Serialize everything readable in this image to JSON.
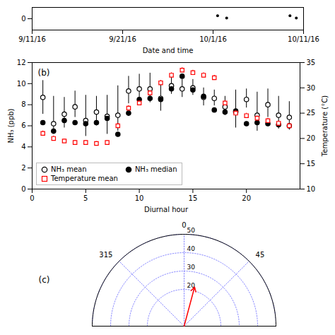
{
  "chart_data": [
    {
      "type": "scatter",
      "xlabel": "Date and time",
      "x": [
        20.5,
        21.5,
        28.5,
        29.2
      ],
      "values": [
        0.08,
        0.02,
        0.08,
        0.02
      ],
      "color": "black",
      "xlim": [
        0,
        30
      ],
      "xticks": [
        {
          "value": 0,
          "label": "9/11/16"
        },
        {
          "value": 10,
          "label": "9/21/16"
        },
        {
          "value": 20,
          "label": "10/1/16"
        },
        {
          "value": 30,
          "label": "10/11/16"
        }
      ],
      "ylim": [
        -0.3,
        0.3
      ],
      "yticks": [
        0
      ]
    },
    {
      "type": "scatter",
      "annotation": "(b)",
      "xlabel": "Diurnal hour",
      "ylabel": "NH₃ (ppb)",
      "y2label": "Temperature (°C)",
      "x": [
        1,
        2,
        3,
        4,
        5,
        6,
        7,
        8,
        9,
        10,
        11,
        12,
        13,
        14,
        15,
        16,
        17,
        18,
        19,
        20,
        21,
        22,
        23,
        24
      ],
      "xlim": [
        0,
        25
      ],
      "xticks": [
        0,
        5,
        10,
        15,
        20
      ],
      "ylim": [
        0,
        12
      ],
      "yticks": [
        0,
        2,
        4,
        6,
        8,
        10,
        12
      ],
      "y2lim": [
        10,
        35
      ],
      "y2ticks": [
        10,
        15,
        20,
        25,
        30,
        35
      ],
      "legend": "lower left",
      "series": [
        {
          "name": "NH₃ mean",
          "color": "black",
          "marker": "circle_open",
          "values": [
            8.7,
            6.2,
            7.1,
            7.8,
            6.5,
            7.3,
            6.9,
            7.0,
            9.3,
            9.5,
            9.5,
            8.6,
            9.8,
            9.5,
            9.6,
            8.7,
            8.6,
            7.8,
            7.3,
            8.5,
            7.0,
            8.0,
            7.0,
            6.8
          ],
          "error_upper": [
            1.6,
            2.6,
            1.6,
            1.5,
            2.4,
            1.5,
            2.0,
            2.8,
            1.4,
            1.4,
            1.5,
            1.4,
            1.0,
            0.9,
            0.8,
            0.9,
            0.8,
            1.0,
            2.1,
            1.0,
            2.2,
            1.5,
            1.8,
            1.5
          ],
          "error_lower": [
            1.6,
            1.0,
            1.3,
            1.0,
            1.5,
            1.3,
            1.7,
            1.5,
            1.2,
            1.2,
            1.3,
            1.2,
            0.8,
            0.8,
            0.7,
            0.8,
            0.7,
            0.8,
            1.5,
            0.8,
            1.5,
            1.2,
            1.3,
            1.2
          ]
        },
        {
          "name": "NH₃ median",
          "color": "black",
          "marker": "circle",
          "values": [
            6.3,
            5.5,
            6.5,
            6.3,
            6.2,
            6.3,
            6.7,
            5.2,
            7.2,
            8.5,
            8.6,
            8.5,
            9.5,
            10.7,
            9.4,
            8.8,
            7.5,
            7.3,
            7.4,
            6.2,
            6.3,
            6.2,
            6.1,
            6.0
          ]
        },
        {
          "name": "Temperature mean",
          "color": "red",
          "marker": "square_open",
          "axis": "y2",
          "values": [
            21.0,
            20.0,
            19.5,
            19.2,
            19.2,
            19.0,
            19.2,
            22.5,
            26.0,
            27.0,
            29.0,
            31.0,
            32.5,
            33.5,
            33.0,
            32.5,
            32.0,
            27.0,
            25.0,
            24.5,
            24.0,
            23.5,
            23.0,
            22.5
          ],
          "error": [
            0.5,
            0.5,
            0.4,
            0.4,
            0.4,
            0.4,
            0.4,
            0.5,
            0.5,
            0.5,
            0.5,
            0.5,
            0.5,
            0.5,
            0.5,
            0.5,
            0.5,
            0.5,
            0.5,
            0.5,
            0.5,
            0.5,
            0.5,
            0.5
          ]
        }
      ]
    },
    {
      "type": "polar",
      "annotation": "(c)",
      "rlim": [
        0,
        50
      ],
      "rticks": [
        20,
        30,
        40,
        50
      ],
      "theta_range": [
        -90,
        90
      ],
      "thetaticks": [
        0,
        45,
        315
      ],
      "grid": true,
      "grid_color": "#6666ff",
      "arrow": {
        "angle": 15,
        "length": 22,
        "color": "red"
      }
    }
  ]
}
